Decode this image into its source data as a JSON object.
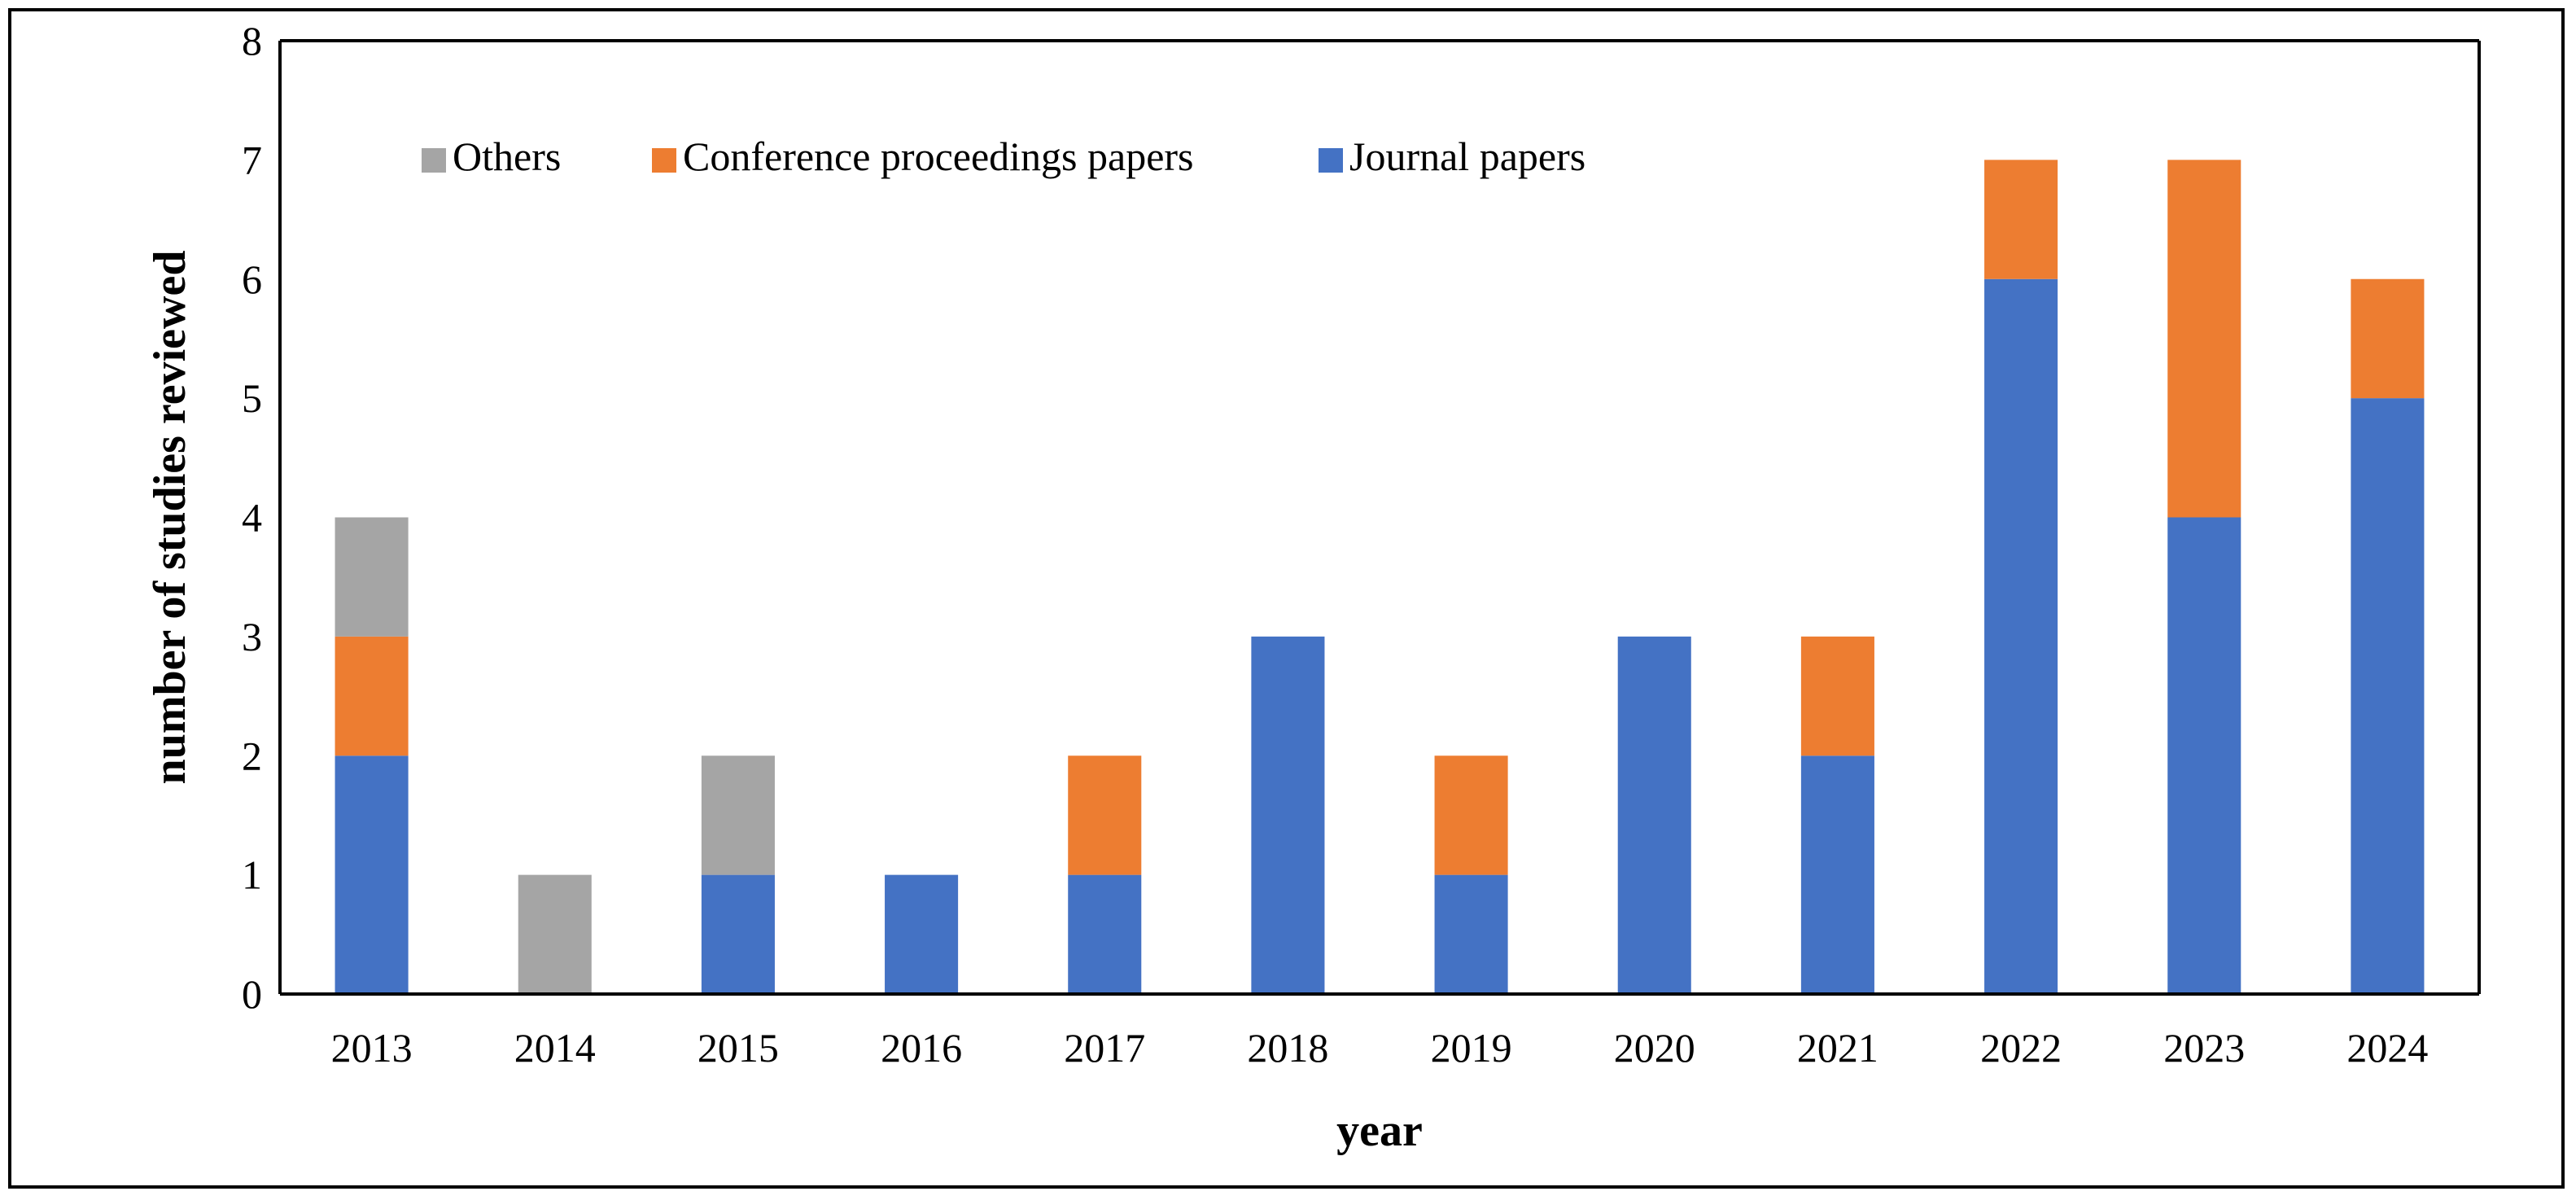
{
  "chart_data": {
    "type": "bar",
    "stacked": true,
    "title": "",
    "xlabel": "year",
    "ylabel": "number of studies reviewed",
    "categories": [
      "2013",
      "2014",
      "2015",
      "2016",
      "2017",
      "2018",
      "2019",
      "2020",
      "2021",
      "2022",
      "2023",
      "2024"
    ],
    "ylim": [
      0,
      8
    ],
    "yticks": [
      0,
      1,
      2,
      3,
      4,
      5,
      6,
      7,
      8
    ],
    "grid": false,
    "legend": "top-left inside plot, horizontal",
    "legend_order": [
      "Others",
      "Conference proceedings papers",
      "Journal papers"
    ],
    "series": [
      {
        "name": "Journal papers",
        "color": "#4472c4",
        "values": [
          2,
          0,
          1,
          1,
          1,
          3,
          1,
          3,
          2,
          6,
          4,
          5
        ]
      },
      {
        "name": "Conference proceedings papers",
        "color": "#ed7d31",
        "values": [
          1,
          0,
          0,
          0,
          1,
          0,
          1,
          0,
          1,
          1,
          3,
          1
        ]
      },
      {
        "name": "Others",
        "color": "#a5a5a5",
        "values": [
          1,
          1,
          1,
          0,
          0,
          0,
          0,
          0,
          0,
          0,
          0,
          0
        ]
      }
    ]
  }
}
